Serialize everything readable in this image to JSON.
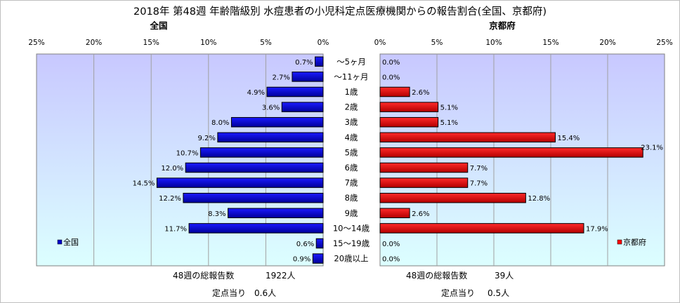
{
  "chart_data": {
    "type": "bar",
    "orientation": "horizontal",
    "title": "2018年 第48週 年齢階級別 水痘患者の小児科定点医療機関からの報告割合(全国、京都府)",
    "categories": [
      "～5ヶ月",
      "～11ヶ月",
      "1歳",
      "2歳",
      "3歳",
      "4歳",
      "5歳",
      "6歳",
      "7歳",
      "8歳",
      "9歳",
      "10～14歳",
      "15～19歳",
      "20歳以上"
    ],
    "xlim": [
      0,
      25
    ],
    "ticks": [
      "0%",
      "5%",
      "10%",
      "15%",
      "20%",
      "25%"
    ],
    "left_ticks": [
      "25%",
      "20%",
      "15%",
      "10%",
      "5%",
      "0%"
    ],
    "grid": true,
    "series": [
      {
        "name": "全国",
        "panel": "left",
        "color": "#0000cc",
        "values": [
          0.7,
          2.7,
          4.9,
          3.6,
          8.0,
          9.2,
          10.7,
          12.0,
          14.5,
          12.2,
          8.3,
          11.7,
          0.6,
          0.9
        ],
        "labels": [
          "0.7%",
          "2.7%",
          "4.9%",
          "3.6%",
          "8.0%",
          "9.2%",
          "10.7%",
          "12.0%",
          "14.5%",
          "12.2%",
          "8.3%",
          "11.7%",
          "0.6%",
          "0.9%"
        ],
        "legend_position": "lower-left"
      },
      {
        "name": "京都府",
        "panel": "right",
        "color": "#ff0000",
        "values": [
          0.0,
          0.0,
          2.6,
          5.1,
          5.1,
          15.4,
          23.1,
          7.7,
          7.7,
          12.8,
          2.6,
          17.9,
          0.0,
          0.0
        ],
        "labels": [
          "0.0%",
          "0.0%",
          "2.6%",
          "5.1%",
          "5.1%",
          "15.4%",
          "23.1%",
          "7.7%",
          "7.7%",
          "12.8%",
          "2.6%",
          "17.9%",
          "0.0%",
          "0.0%"
        ],
        "legend_position": "lower-right"
      }
    ]
  },
  "panels": {
    "left_header": "全国",
    "right_header": "京都府"
  },
  "footer": {
    "national_total_label": "48週の総報告数",
    "national_total_value": "1922人",
    "national_per_label": "定点当り",
    "national_per_value": "0.6人",
    "kyoto_total_label": "48週の総報告数",
    "kyoto_total_value": "39人",
    "kyoto_per_label": "定点当り",
    "kyoto_per_value": "0.5人"
  },
  "colors": {
    "plot_gradient_top": "#c8c8ff",
    "plot_gradient_bottom": "#dcffff",
    "national_bar": "#0000cc",
    "kyoto_bar": "#ff0000"
  }
}
